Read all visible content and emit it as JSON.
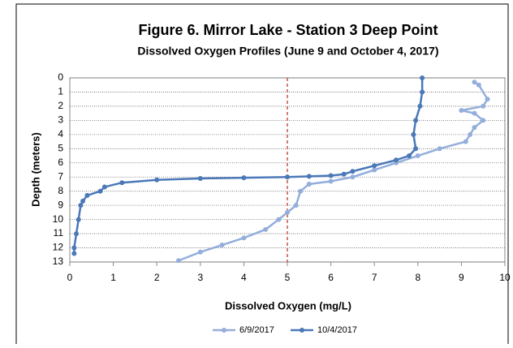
{
  "chart_data": {
    "type": "line",
    "title": "Figure 6. Mirror Lake - Station 3 Deep Point",
    "subtitle": "Dissolved Oxygen Profiles (June 9 and October 4, 2017)",
    "x_label": "Dissolved Oxygen (mg/L)",
    "y_label": "Depth (meters)",
    "xlim": [
      0,
      10
    ],
    "xticks": [
      0,
      1,
      2,
      3,
      4,
      5,
      6,
      7,
      8,
      9,
      10
    ],
    "ylim": [
      0,
      13
    ],
    "y_inverted": true,
    "yticks": [
      0,
      1,
      2,
      3,
      4,
      5,
      6,
      7,
      8,
      9,
      10,
      11,
      12,
      13
    ],
    "grid": true,
    "reference_x": 5,
    "reference_color": "#c0392b",
    "legend": "bottom",
    "series": [
      {
        "name": "6/9/2017",
        "color": "#94aedc",
        "x": [
          9.3,
          9.4,
          9.6,
          9.5,
          9.0,
          9.3,
          9.5,
          9.3,
          9.2,
          9.1,
          8.5,
          8.0,
          7.5,
          7.0,
          6.5,
          6.0,
          5.5,
          5.3,
          5.2,
          5.0,
          4.8,
          4.5,
          4.0,
          3.5,
          3.0,
          2.5
        ],
        "y": [
          0.3,
          0.5,
          1.5,
          2.0,
          2.3,
          2.5,
          3.0,
          3.5,
          4.0,
          4.5,
          5.0,
          5.5,
          6.0,
          6.5,
          7.0,
          7.3,
          7.5,
          8.0,
          9.0,
          9.5,
          10.0,
          10.7,
          11.3,
          11.8,
          12.3,
          12.9
        ]
      },
      {
        "name": "10/4/2017",
        "color": "#4a78b8",
        "x": [
          8.1,
          8.1,
          8.05,
          7.95,
          7.9,
          7.95,
          7.8,
          7.5,
          7.0,
          6.5,
          6.3,
          6.0,
          5.5,
          5.0,
          4.0,
          3.0,
          2.0,
          1.2,
          0.8,
          0.7,
          0.4,
          0.3,
          0.25,
          0.2,
          0.15,
          0.1,
          0.1
        ],
        "y": [
          0,
          1,
          2,
          3,
          4,
          5,
          5.5,
          5.8,
          6.2,
          6.6,
          6.8,
          6.9,
          6.95,
          7.0,
          7.05,
          7.1,
          7.2,
          7.4,
          7.7,
          8.0,
          8.3,
          8.7,
          9.0,
          10.0,
          11.0,
          12.0,
          12.4
        ]
      }
    ]
  }
}
